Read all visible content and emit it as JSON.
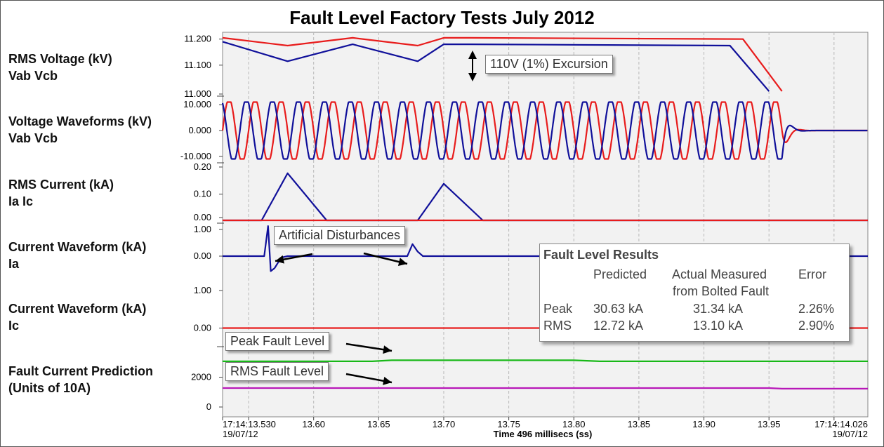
{
  "title": "Fault Level Factory Tests July 2012",
  "tracks": [
    {
      "id": "rms_v",
      "label_l1": "RMS Voltage (kV)",
      "label_l2": "Vab Vcb",
      "ticks": [
        "11.200",
        "11.100",
        "11.000"
      ]
    },
    {
      "id": "v_wave",
      "label_l1": "Voltage Waveforms (kV)",
      "label_l2": "Vab Vcb",
      "ticks": [
        "10.000",
        "0.000",
        "-10.000"
      ]
    },
    {
      "id": "rms_i",
      "label_l1": "RMS Current (kA)",
      "label_l2": "Ia Ic",
      "ticks": [
        "0.20",
        "0.10",
        "0.00"
      ]
    },
    {
      "id": "ia_wave",
      "label_l1": "Current Waveform (kA)",
      "label_l2": "Ia",
      "ticks": [
        "1.00",
        "0.00",
        "1.00"
      ]
    },
    {
      "id": "ic_wave",
      "label_l1": "Current Waveform (kA)",
      "label_l2": "Ic",
      "ticks": [
        "0.00"
      ]
    },
    {
      "id": "fault_pred",
      "label_l1": "Fault Current Prediction",
      "label_l2": "(Units of 10A)",
      "ticks": [
        "2000",
        "0"
      ]
    }
  ],
  "x_axis": {
    "start_label": "17:14:13.530",
    "start_date": "19/07/12",
    "end_label": "17:14:14.026",
    "end_date": "19/07/12",
    "ticks": [
      "13.60",
      "13.65",
      "13.70",
      "13.75",
      "13.80",
      "13.85",
      "13.90",
      "13.95"
    ],
    "axis_title": "Time 496 millisecs (ss)"
  },
  "callouts": {
    "excursion": "110V (1%) Excursion",
    "disturbances": "Artificial Disturbances",
    "peak_fault": "Peak Fault Level",
    "rms_fault": "RMS Fault Level"
  },
  "results": {
    "title": "Fault Level Results",
    "col_predicted": "Predicted",
    "col_actual_l1": "Actual Measured",
    "col_actual_l2": "from Bolted Fault",
    "col_error": "Error",
    "rows": [
      {
        "name": "Peak",
        "predicted": "30.63 kA",
        "actual": "31.34 kA",
        "error": "2.26%"
      },
      {
        "name": "RMS",
        "predicted": "12.72 kA",
        "actual": "13.10 kA",
        "error": "2.90%"
      }
    ]
  },
  "colors": {
    "vab": "#e81c1c",
    "vcb": "#10109a",
    "ia": "#10109a",
    "ic": "#e81c1c",
    "peak_fault": "#18b818",
    "rms_fault": "#b818b8",
    "plot_bg": "#f2f2f2",
    "grid": "#b8b8b8"
  },
  "chart_data": {
    "type": "line",
    "title": "Fault Level Factory Tests July 2012",
    "xlabel": "Time 496 millisecs (ss)",
    "xlim": [
      13.53,
      14.026
    ],
    "grid": true,
    "series": [
      {
        "track": "rms_v",
        "x": [
          13.53,
          13.58,
          13.63,
          13.68,
          13.7,
          13.72,
          13.93,
          13.96
        ],
        "values": [
          11.205,
          11.175,
          11.205,
          11.175,
          11.205,
          11.205,
          11.2,
          11.0
        ],
        "color": "#e81c1c"
      },
      {
        "track": "rms_v",
        "x": [
          13.53,
          13.58,
          13.63,
          13.68,
          13.7,
          13.72,
          13.92,
          13.95
        ],
        "values": [
          11.19,
          11.115,
          11.18,
          11.115,
          11.18,
          11.18,
          11.175,
          11.0
        ],
        "color": "#10109a"
      },
      {
        "track": "v_wave",
        "type": "sine",
        "amplitude": 11.0,
        "freq_hz": 50,
        "fault_x": 13.96,
        "color": "#e81c1c"
      },
      {
        "track": "v_wave",
        "type": "sine",
        "amplitude": 11.0,
        "freq_hz": 50,
        "fault_x": 13.96,
        "color": "#10109a"
      },
      {
        "track": "rms_i",
        "x": [
          13.53,
          13.56,
          13.58,
          13.61,
          13.68,
          13.7,
          13.73,
          14.026
        ],
        "values": [
          0,
          0,
          0.18,
          0,
          0,
          0.14,
          0,
          0
        ],
        "color": "#10109a"
      },
      {
        "track": "rms_i",
        "x": [
          13.53,
          14.026
        ],
        "values": [
          0,
          0
        ],
        "color": "#e81c1c"
      },
      {
        "track": "ia_wave",
        "x": [
          13.53,
          13.562,
          13.565,
          13.567,
          13.57,
          13.575,
          13.58,
          13.672,
          13.676,
          13.68,
          13.684,
          14.026
        ],
        "values": [
          0,
          0,
          1.0,
          -0.5,
          -0.4,
          -0.05,
          0,
          0,
          0.4,
          0.15,
          0,
          0
        ],
        "color": "#10109a"
      },
      {
        "track": "ic_wave",
        "x": [
          13.53,
          14.026
        ],
        "values": [
          0,
          0
        ],
        "color": "#e81c1c"
      },
      {
        "track": "fault_pred",
        "x": [
          13.53,
          13.645,
          13.66,
          13.8,
          13.82,
          14.026
        ],
        "values": [
          3063,
          3063,
          3134,
          3134,
          3063,
          3063
        ],
        "color": "#18b818"
      },
      {
        "track": "fault_pred",
        "x": [
          13.53,
          13.95,
          13.96,
          14.026
        ],
        "values": [
          1272,
          1272,
          1230,
          1230
        ],
        "color": "#b818b8"
      }
    ]
  }
}
